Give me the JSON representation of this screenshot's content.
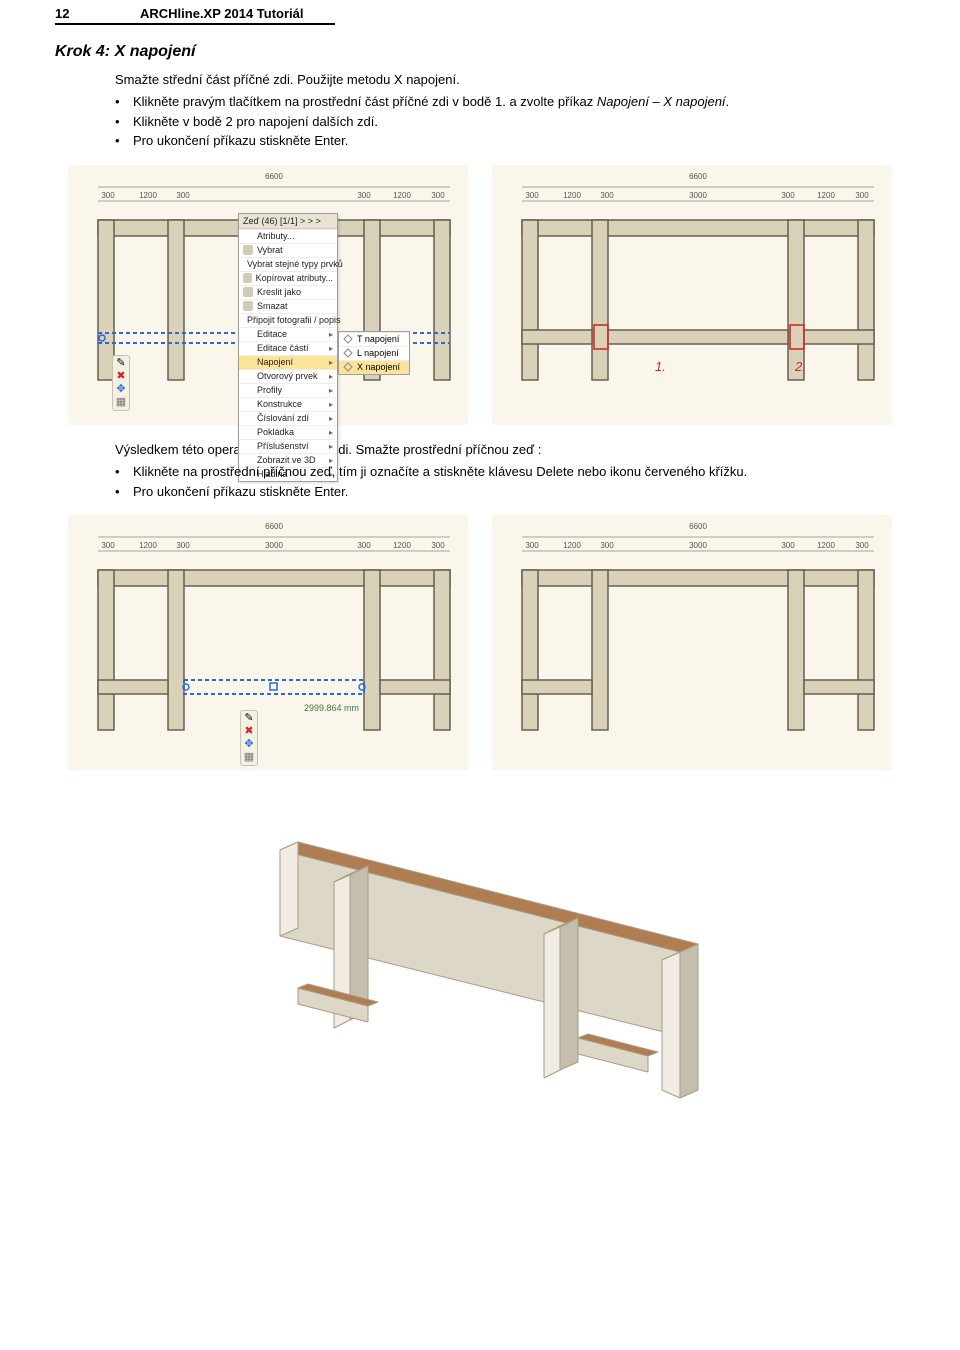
{
  "header": {
    "page_number": "12",
    "doc_title": "ARCHline.XP 2014 Tutoriál"
  },
  "krok4": {
    "title": "Krok 4: X napojení",
    "lead": "Smažte střední část příčné zdi. Použijte metodu X napojení.",
    "text_prefix": "Klikněte pravým tlačítkem na prostřední část příčné zdi v bodě 1. a zvolte příkaz ",
    "text_em": "Napojení – X napojení",
    "bullet2": "Klikněte v bodě 2 pro napojení dalších zdí.",
    "bullet3": "Pro ukončení příkazu stiskněte Enter."
  },
  "mid": {
    "line1": "Výsledkem této operace jsou tři nové zdi. Smažte prostřední příčnou zeď :",
    "bullet1": "Klikněte na prostřední příčnou zeď, tím ji označíte a stiskněte klávesu Delete nebo ikonu červeného křížku.",
    "bullet2": "Pro ukončení příkazu stiskněte Enter."
  },
  "plan": {
    "total_width": "6600",
    "dims": [
      "300",
      "1200",
      "300",
      "3000",
      "300",
      "1200",
      "300"
    ],
    "bg_color": "#faf6ec",
    "wall_fill": "#d9d2b8",
    "wall_stroke": "#5b5846",
    "sel_stroke": "#2b6ad6",
    "sel_dash": "4 3",
    "marker_color": "#d22828",
    "marker1": "1.",
    "marker2": "2."
  },
  "ctxmenu": {
    "header": "Zeď (46) [1/1]  > > >",
    "items": [
      {
        "label": "Atributy...",
        "icon": false,
        "sub": false
      },
      {
        "label": "Vybrat",
        "icon": true,
        "sub": false
      },
      {
        "label": "Vybrat stejné typy prvků",
        "icon": true,
        "sub": false
      },
      {
        "label": "Kopírovat atributy...",
        "icon": true,
        "sub": false
      },
      {
        "label": "Kreslit jako",
        "icon": true,
        "sub": false
      },
      {
        "label": "Smazat",
        "icon": true,
        "sub": false
      },
      {
        "label": "Připojit fotografii / popis",
        "icon": true,
        "sub": false
      },
      {
        "label": "Editace",
        "icon": false,
        "sub": true
      },
      {
        "label": "Editace částí",
        "icon": false,
        "sub": true
      },
      {
        "label": "Napojení",
        "icon": false,
        "sub": true,
        "hl": true
      },
      {
        "label": "Otvorový prvek",
        "icon": false,
        "sub": true
      },
      {
        "label": "Profily",
        "icon": false,
        "sub": true
      },
      {
        "label": "Konstrukce",
        "icon": false,
        "sub": true
      },
      {
        "label": "Číslování zdí",
        "icon": false,
        "sub": true
      },
      {
        "label": "Pokládka",
        "icon": false,
        "sub": true
      },
      {
        "label": "Příslušenství",
        "icon": false,
        "sub": true
      },
      {
        "label": "Zobrazit ve 3D",
        "icon": false,
        "sub": true
      },
      {
        "label": "Hladina",
        "icon": false,
        "sub": true
      }
    ],
    "submenu": [
      {
        "label": "T napojení",
        "hl": false
      },
      {
        "label": "L napojení",
        "hl": false
      },
      {
        "label": "X napojení",
        "hl": true
      }
    ]
  },
  "coord_readout": "2999.864 mm",
  "render3d": {
    "top_fill": "#b07c52",
    "side_fill_light": "#f0ece4",
    "side_fill_mid": "#ddd7c8",
    "side_fill_dark": "#c6beac",
    "stroke": "#a89d84"
  }
}
